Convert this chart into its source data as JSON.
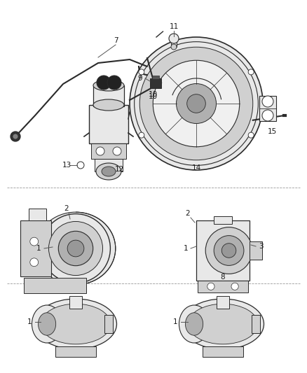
{
  "bg_color": "#ffffff",
  "line_color": "#2a2a2a",
  "text_color": "#1a1a1a",
  "gray1": "#c8c8c8",
  "gray2": "#b0b0b0",
  "gray3": "#989898",
  "gray4": "#808080",
  "gray5": "#e8e8e8",
  "gray6": "#d0d0d0",
  "figsize": [
    4.38,
    5.33
  ],
  "dpi": 100,
  "label_fontsize": 7.5
}
